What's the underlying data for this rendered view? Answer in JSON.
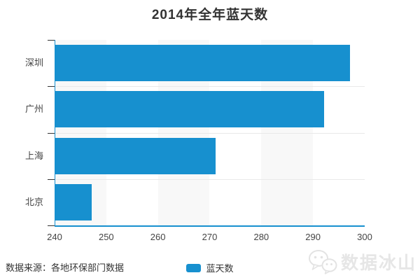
{
  "title": "2014年全年蓝天数",
  "chart_data": {
    "type": "bar",
    "orientation": "horizontal",
    "title": "2014年全年蓝天数",
    "categories": [
      "深圳",
      "广州",
      "上海",
      "北京"
    ],
    "series": [
      {
        "name": "蓝天数",
        "values": [
          297,
          292,
          271,
          247
        ]
      }
    ],
    "xlabel": "",
    "ylabel": "",
    "xlim": [
      240,
      300
    ],
    "x_ticks": [
      "240",
      "250",
      "260",
      "270",
      "280",
      "290",
      "300"
    ],
    "grid": "vertical-stripes-and-horizontal-lines",
    "legend_position": "bottom-center",
    "bar_color": "#1790cf",
    "axis_color": "#1790cf",
    "stripe_color": "#f8f8f8",
    "tick_color": "#333333"
  },
  "legend": {
    "label": "蓝天数"
  },
  "footer": {
    "source": "数据来源：各地环保部门数据",
    "watermark": "数据冰山",
    "watermark_icon": "wechat-icon"
  }
}
